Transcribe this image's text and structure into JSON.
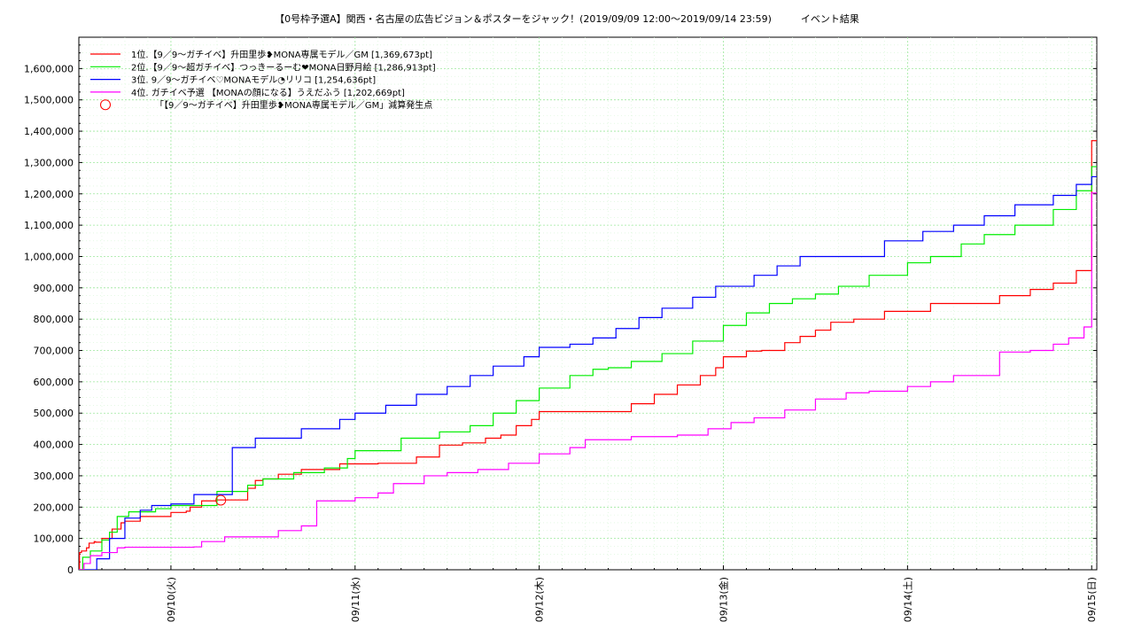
{
  "chart_data": {
    "type": "line",
    "title": "【0号枠予選A】関西・名古屋の広告ビジョン＆ポスターをジャック！(2019/09/09 12:00～2019/09/14 23:59)　　　イベント結果",
    "xlabel": "",
    "ylabel": "",
    "ylim": [
      0,
      1700000
    ],
    "xlim": [
      "2019-09-09 12:00",
      "2019-09-15 00:40"
    ],
    "grid": true,
    "legend_position": "top-left",
    "x_tick_labels": [
      "09/10(火)",
      "09/11(水)",
      "09/12(木)",
      "09/13(金)",
      "09/14(土)",
      "09/15(日)"
    ],
    "y_tick_labels": [
      "0",
      "100,000",
      "200,000",
      "300,000",
      "400,000",
      "500,000",
      "600,000",
      "700,000",
      "800,000",
      "900,000",
      "1,000,000",
      "1,100,000",
      "1,200,000",
      "1,300,000",
      "1,400,000",
      "1,500,000",
      "1,600,000"
    ],
    "series": [
      {
        "name": "1位.【9／9～ガチイベ】升田里歩❥MONA専属モデル／GM [1,369,673pt]",
        "color": "#ff0000",
        "x": [
          "2019-09-09 12:00",
          "2019-09-09 12:05",
          "2019-09-09 12:20",
          "2019-09-09 13:00",
          "2019-09-09 13:20",
          "2019-09-09 14:00",
          "2019-09-09 14:10",
          "2019-09-09 15:00",
          "2019-09-09 16:20",
          "2019-09-09 17:30",
          "2019-09-09 18:00",
          "2019-09-09 20:00",
          "2019-09-10 00:00",
          "2019-09-10 02:00",
          "2019-09-10 02:30",
          "2019-09-10 04:00",
          "2019-09-10 06:00",
          "2019-09-10 10:00",
          "2019-09-10 11:00",
          "2019-09-10 12:00",
          "2019-09-10 14:00",
          "2019-09-10 17:00",
          "2019-09-10 22:00",
          "2019-09-11 03:00",
          "2019-09-11 08:00",
          "2019-09-11 11:00",
          "2019-09-11 14:00",
          "2019-09-11 17:00",
          "2019-09-11 19:00",
          "2019-09-11 21:00",
          "2019-09-11 23:00",
          "2019-09-12 00:00",
          "2019-09-12 04:00",
          "2019-09-12 12:00",
          "2019-09-12 15:00",
          "2019-09-12 18:00",
          "2019-09-12 21:00",
          "2019-09-12 23:00",
          "2019-09-13 00:00",
          "2019-09-13 03:00",
          "2019-09-13 05:00",
          "2019-09-13 08:00",
          "2019-09-13 10:00",
          "2019-09-13 12:00",
          "2019-09-13 14:00",
          "2019-09-13 17:00",
          "2019-09-13 21:00",
          "2019-09-14 03:00",
          "2019-09-14 12:00",
          "2019-09-14 16:00",
          "2019-09-14 19:00",
          "2019-09-14 22:00",
          "2019-09-15 00:00",
          "2019-09-15 00:40"
        ],
        "values": [
          0,
          55000,
          60000,
          70000,
          85000,
          90000,
          88000,
          100000,
          130000,
          150000,
          155000,
          170000,
          183000,
          187000,
          200000,
          220000,
          223000,
          260000,
          285000,
          290000,
          305000,
          320000,
          338000,
          340000,
          360000,
          398000,
          405000,
          420000,
          430000,
          460000,
          480000,
          505000,
          505000,
          530000,
          560000,
          590000,
          620000,
          645000,
          680000,
          698000,
          700000,
          725000,
          745000,
          765000,
          790000,
          800000,
          825000,
          850000,
          875000,
          895000,
          915000,
          955000,
          1369673,
          1369673
        ]
      },
      {
        "name": "2位.【9／9～超ガチイベ】つっきーるーむ❤MONA日野月絵 [1,286,913pt]",
        "color": "#00ee00",
        "x": [
          "2019-09-09 12:00",
          "2019-09-09 12:30",
          "2019-09-09 13:30",
          "2019-09-09 15:00",
          "2019-09-09 16:00",
          "2019-09-09 17:00",
          "2019-09-09 18:30",
          "2019-09-09 22:00",
          "2019-09-10 00:00",
          "2019-09-10 06:00",
          "2019-09-10 10:00",
          "2019-09-10 12:00",
          "2019-09-10 16:00",
          "2019-09-10 20:00",
          "2019-09-10 23:00",
          "2019-09-11 00:00",
          "2019-09-11 06:00",
          "2019-09-11 11:00",
          "2019-09-11 15:00",
          "2019-09-11 18:00",
          "2019-09-11 21:00",
          "2019-09-12 00:00",
          "2019-09-12 04:00",
          "2019-09-12 07:00",
          "2019-09-12 09:00",
          "2019-09-12 12:00",
          "2019-09-12 16:00",
          "2019-09-12 20:00",
          "2019-09-13 00:00",
          "2019-09-13 03:00",
          "2019-09-13 06:00",
          "2019-09-13 09:00",
          "2019-09-13 12:00",
          "2019-09-13 15:00",
          "2019-09-13 19:00",
          "2019-09-14 00:00",
          "2019-09-14 03:00",
          "2019-09-14 07:00",
          "2019-09-14 10:00",
          "2019-09-14 14:00",
          "2019-09-14 19:00",
          "2019-09-14 22:00",
          "2019-09-15 00:00",
          "2019-09-15 00:40"
        ],
        "values": [
          0,
          40000,
          60000,
          95000,
          120000,
          170000,
          185000,
          195000,
          205000,
          250000,
          270000,
          290000,
          310000,
          325000,
          355000,
          380000,
          420000,
          440000,
          460000,
          500000,
          540000,
          580000,
          620000,
          640000,
          645000,
          665000,
          690000,
          730000,
          780000,
          820000,
          850000,
          865000,
          880000,
          905000,
          940000,
          980000,
          1000000,
          1040000,
          1070000,
          1100000,
          1150000,
          1210000,
          1286913,
          1286913
        ]
      },
      {
        "name": "3位. 9／9～ガチイベ♡MONAモデル◔リリコ [1,254,636pt]",
        "color": "#0000ff",
        "x": [
          "2019-09-09 12:00",
          "2019-09-09 14:20",
          "2019-09-09 16:00",
          "2019-09-09 18:00",
          "2019-09-09 20:00",
          "2019-09-09 21:30",
          "2019-09-10 00:00",
          "2019-09-10 03:00",
          "2019-09-10 08:00",
          "2019-09-10 11:00",
          "2019-09-10 17:00",
          "2019-09-10 22:00",
          "2019-09-11 00:00",
          "2019-09-11 04:00",
          "2019-09-11 08:00",
          "2019-09-11 12:00",
          "2019-09-11 15:00",
          "2019-09-11 18:00",
          "2019-09-11 22:00",
          "2019-09-12 00:00",
          "2019-09-12 04:00",
          "2019-09-12 07:00",
          "2019-09-12 10:00",
          "2019-09-12 13:00",
          "2019-09-12 16:00",
          "2019-09-12 20:00",
          "2019-09-12 23:00",
          "2019-09-13 04:00",
          "2019-09-13 07:00",
          "2019-09-13 10:00",
          "2019-09-13 14:00",
          "2019-09-13 21:00",
          "2019-09-14 02:00",
          "2019-09-14 06:00",
          "2019-09-14 10:00",
          "2019-09-14 14:00",
          "2019-09-14 19:00",
          "2019-09-14 22:00",
          "2019-09-15 00:00",
          "2019-09-15 00:40"
        ],
        "values": [
          0,
          35000,
          100000,
          165000,
          190000,
          205000,
          210000,
          240000,
          390000,
          420000,
          450000,
          480000,
          500000,
          525000,
          560000,
          585000,
          620000,
          650000,
          680000,
          710000,
          720000,
          740000,
          770000,
          805000,
          835000,
          870000,
          905000,
          940000,
          970000,
          1000000,
          1000000,
          1050000,
          1080000,
          1100000,
          1130000,
          1165000,
          1195000,
          1230000,
          1254636,
          1254636
        ]
      },
      {
        "name": "4位. ガチイベ予選 【MONAの顔になる】うえだふう [1,202,669pt]",
        "color": "#ff00ff",
        "x": [
          "2019-09-09 12:00",
          "2019-09-09 12:40",
          "2019-09-09 13:30",
          "2019-09-09 15:00",
          "2019-09-09 17:00",
          "2019-09-09 18:00",
          "2019-09-10 03:00",
          "2019-09-10 04:00",
          "2019-09-10 07:00",
          "2019-09-10 10:00",
          "2019-09-10 14:00",
          "2019-09-10 17:00",
          "2019-09-10 19:00",
          "2019-09-11 00:00",
          "2019-09-11 03:00",
          "2019-09-11 05:00",
          "2019-09-11 09:00",
          "2019-09-11 12:00",
          "2019-09-11 16:00",
          "2019-09-11 20:00",
          "2019-09-12 00:00",
          "2019-09-12 04:00",
          "2019-09-12 06:00",
          "2019-09-12 12:00",
          "2019-09-12 18:00",
          "2019-09-12 22:00",
          "2019-09-13 01:00",
          "2019-09-13 04:00",
          "2019-09-13 08:00",
          "2019-09-13 12:00",
          "2019-09-13 16:00",
          "2019-09-13 19:00",
          "2019-09-14 00:00",
          "2019-09-14 03:00",
          "2019-09-14 06:00",
          "2019-09-14 12:00",
          "2019-09-14 16:00",
          "2019-09-14 19:00",
          "2019-09-14 21:00",
          "2019-09-14 23:00",
          "2019-09-15 00:00",
          "2019-09-15 00:40"
        ],
        "values": [
          0,
          20000,
          45000,
          55000,
          70000,
          72000,
          73000,
          90000,
          105000,
          105000,
          125000,
          140000,
          220000,
          230000,
          245000,
          275000,
          300000,
          310000,
          320000,
          340000,
          370000,
          390000,
          415000,
          425000,
          430000,
          450000,
          470000,
          485000,
          510000,
          545000,
          565000,
          570000,
          585000,
          600000,
          620000,
          695000,
          700000,
          720000,
          740000,
          775000,
          1202669,
          1202669
        ]
      }
    ],
    "annotation_marker": {
      "label": "「【9／9～ガチイベ】升田里歩❥MONA専属モデル／GM」減算発生点",
      "x": "2019-09-10 06:30",
      "y": 222000,
      "color": "#ff0000"
    }
  }
}
